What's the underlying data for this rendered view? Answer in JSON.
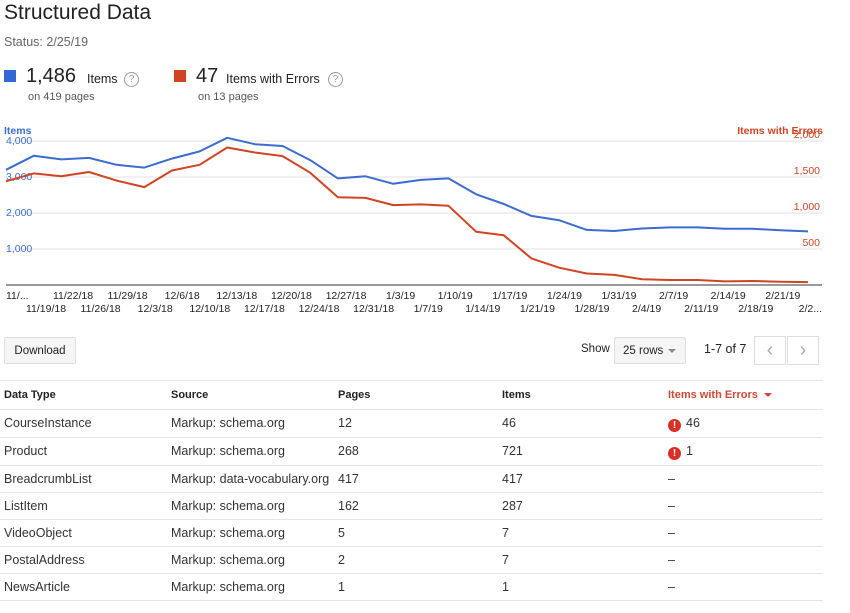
{
  "header": {
    "title": "Structured Data",
    "status": "Status: 2/25/19"
  },
  "metrics": [
    {
      "value": "1,486",
      "label": "Items",
      "sub": "on 419 pages",
      "color": "#3367d6"
    },
    {
      "value": "47",
      "label": "Items with Errors",
      "sub": "on 13 pages",
      "color": "#d04423"
    }
  ],
  "chart_data": {
    "type": "line",
    "y_left_label": "Items",
    "y_right_label": "Items with Errors",
    "y_left_ticks": [
      "4,000",
      "3,000",
      "2,000",
      "1,000"
    ],
    "y_right_ticks": [
      "2,000",
      "1,500",
      "1,000",
      "500"
    ],
    "ylim_left": [
      0,
      4000
    ],
    "ylim_right": [
      0,
      2000
    ],
    "x_tick_labels_top": [
      "11/...",
      "11/22/18",
      "11/29/18",
      "12/6/18",
      "12/13/18",
      "12/20/18",
      "12/27/18",
      "1/3/19",
      "1/10/19",
      "1/17/19",
      "1/24/19",
      "1/31/19",
      "2/7/19",
      "2/14/19",
      "2/21/19"
    ],
    "x_tick_labels_bottom": [
      "11/19/18",
      "11/26/18",
      "12/3/18",
      "12/10/18",
      "12/17/18",
      "12/24/18",
      "12/31/18",
      "1/7/19",
      "1/14/19",
      "1/21/19",
      "1/28/19",
      "2/4/19",
      "2/11/19",
      "2/18/19",
      "2/2..."
    ],
    "series": [
      {
        "name": "Items",
        "axis": "left",
        "color": "#3b6ccf",
        "values": [
          3200,
          3590,
          3490,
          3530,
          3340,
          3260,
          3510,
          3710,
          4090,
          3910,
          3860,
          3470,
          2960,
          3020,
          2810,
          2920,
          2960,
          2520,
          2250,
          1920,
          1800,
          1530,
          1500,
          1570,
          1600,
          1600,
          1560,
          1560,
          1520,
          1490
        ]
      },
      {
        "name": "Items with Errors",
        "axis": "right",
        "color": "#d04423",
        "values": [
          1440,
          1550,
          1510,
          1570,
          1450,
          1360,
          1590,
          1670,
          1910,
          1840,
          1790,
          1560,
          1220,
          1210,
          1110,
          1120,
          1100,
          740,
          690,
          370,
          240,
          160,
          140,
          80,
          70,
          70,
          50,
          55,
          45,
          40
        ]
      }
    ]
  },
  "controls": {
    "download": "Download",
    "show": "Show",
    "rows": "25 rows",
    "pager": "1-7 of 7",
    "prev": "‹",
    "next": "›"
  },
  "table": {
    "headers": [
      "Data Type",
      "Source",
      "Pages",
      "Items",
      "Items with Errors"
    ],
    "rows": [
      {
        "type": "CourseInstance",
        "source": "Markup: schema.org",
        "pages": "12",
        "items": "46",
        "errors": "46",
        "has_error": true
      },
      {
        "type": "Product",
        "source": "Markup: schema.org",
        "pages": "268",
        "items": "721",
        "errors": "1",
        "has_error": true
      },
      {
        "type": "BreadcrumbList",
        "source": "Markup: data-vocabulary.org",
        "pages": "417",
        "items": "417",
        "errors": "–",
        "has_error": false
      },
      {
        "type": "ListItem",
        "source": "Markup: schema.org",
        "pages": "162",
        "items": "287",
        "errors": "–",
        "has_error": false
      },
      {
        "type": "VideoObject",
        "source": "Markup: schema.org",
        "pages": "5",
        "items": "7",
        "errors": "–",
        "has_error": false
      },
      {
        "type": "PostalAddress",
        "source": "Markup: schema.org",
        "pages": "2",
        "items": "7",
        "errors": "–",
        "has_error": false
      },
      {
        "type": "NewsArticle",
        "source": "Markup: schema.org",
        "pages": "1",
        "items": "1",
        "errors": "–",
        "has_error": false
      }
    ]
  }
}
